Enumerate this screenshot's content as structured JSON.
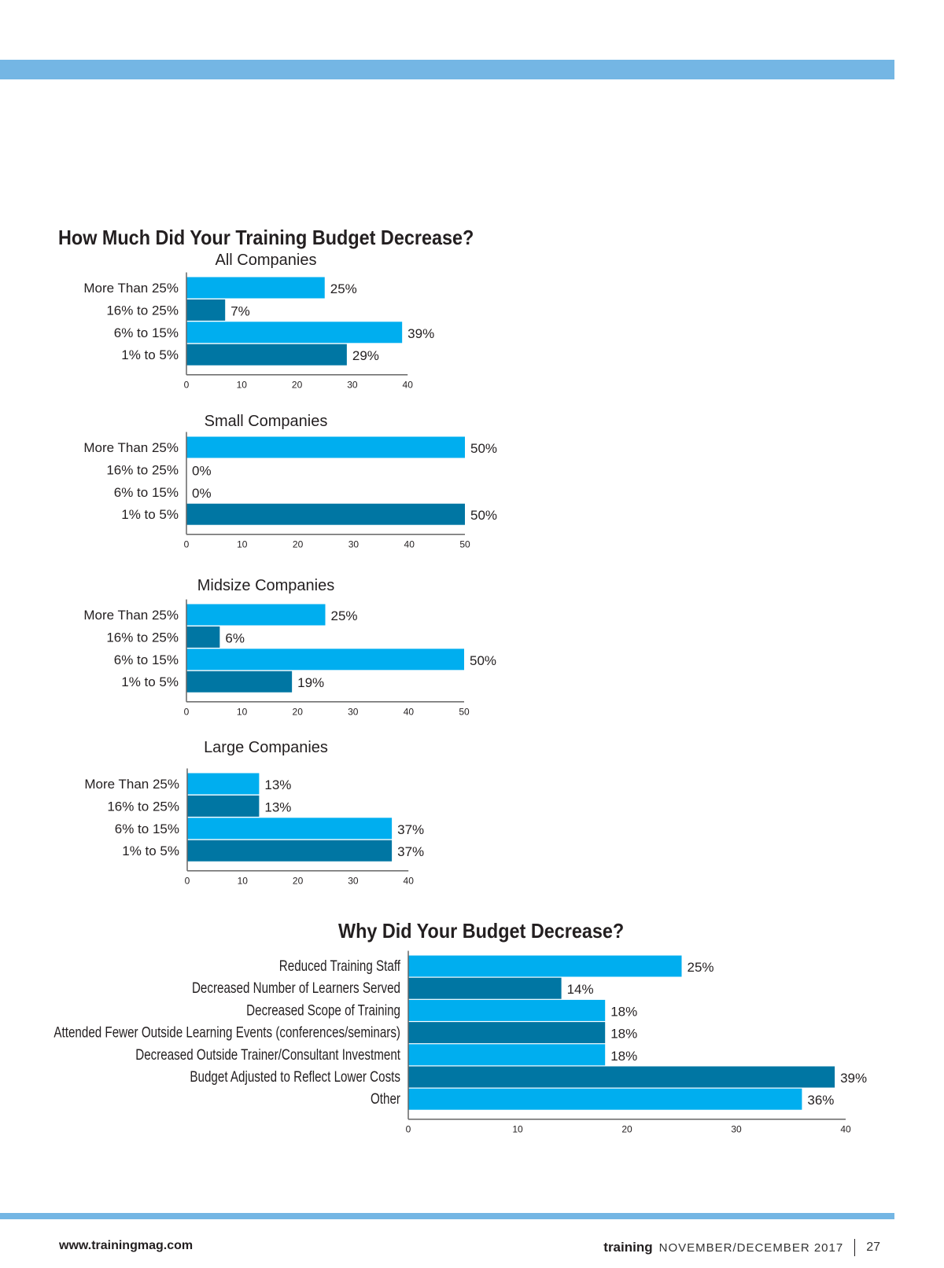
{
  "colors": {
    "light": "#00aeef",
    "dark": "#0076a3",
    "band": "#74b6e4",
    "text": "#231f20"
  },
  "page_title": "How Much Did Your Training Budget Decrease?",
  "footer": {
    "url": "www.trainingmag.com",
    "brand": "training",
    "issue": "NOVEMBER/DECEMBER 2017",
    "page": "27"
  },
  "chart_data": [
    {
      "type": "bar",
      "orientation": "horizontal",
      "title": "All Companies",
      "categories": [
        "More Than 25%",
        "16% to 25%",
        "6% to 15%",
        "1% to 5%"
      ],
      "values": [
        25,
        7,
        39,
        29
      ],
      "labels": [
        "25%",
        "7%",
        "39%",
        "29%"
      ],
      "xlim": [
        0,
        40
      ],
      "ticks": [
        "0",
        "10",
        "20",
        "30",
        "40"
      ]
    },
    {
      "type": "bar",
      "orientation": "horizontal",
      "title": "Small Companies",
      "categories": [
        "More Than 25%",
        "16% to 25%",
        "6% to 15%",
        "1% to 5%"
      ],
      "values": [
        50,
        0,
        0,
        50
      ],
      "labels": [
        "50%",
        "0%",
        "0%",
        "50%"
      ],
      "xlim": [
        0,
        50
      ],
      "ticks": [
        "0",
        "10",
        "20",
        "30",
        "40",
        "50"
      ]
    },
    {
      "type": "bar",
      "orientation": "horizontal",
      "title": "Midsize Companies",
      "categories": [
        "More Than 25%",
        "16% to 25%",
        "6% to 15%",
        "1% to 5%"
      ],
      "values": [
        25,
        6,
        50,
        19
      ],
      "labels": [
        "25%",
        "6%",
        "50%",
        "19%"
      ],
      "xlim": [
        0,
        50
      ],
      "ticks": [
        "0",
        "10",
        "20",
        "30",
        "40",
        "50"
      ]
    },
    {
      "type": "bar",
      "orientation": "horizontal",
      "title": "Large Companies",
      "categories": [
        "More Than 25%",
        "16% to 25%",
        "6% to 15%",
        "1% to 5%"
      ],
      "values": [
        13,
        13,
        37,
        37
      ],
      "labels": [
        "13%",
        "13%",
        "37%",
        "37%"
      ],
      "xlim": [
        0,
        40
      ],
      "ticks": [
        "0",
        "10",
        "20",
        "30",
        "40"
      ]
    },
    {
      "type": "bar",
      "orientation": "horizontal",
      "title": "Why Did Your Budget Decrease?",
      "categories": [
        "Reduced Training Staff",
        "Decreased Number of Learners Served",
        "Decreased Scope of Training",
        "Attended Fewer Outside Learning Events (conferences/seminars)",
        "Decreased Outside Trainer/Consultant Investment",
        "Budget Adjusted to Reflect Lower Costs",
        "Other"
      ],
      "values": [
        25,
        14,
        18,
        18,
        18,
        39,
        36
      ],
      "labels": [
        "25%",
        "14%",
        "18%",
        "18%",
        "18%",
        "39%",
        "36%"
      ],
      "xlim": [
        0,
        40
      ],
      "ticks": [
        "0",
        "10",
        "20",
        "30",
        "40"
      ]
    }
  ]
}
